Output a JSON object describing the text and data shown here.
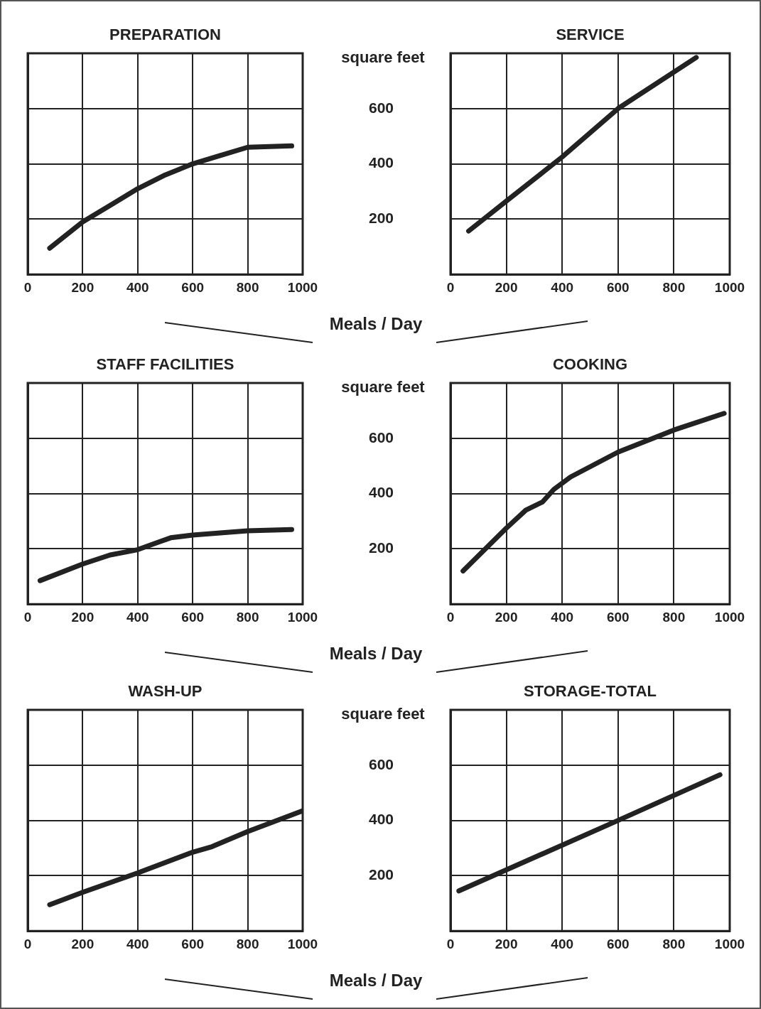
{
  "chart_data": [
    {
      "type": "line",
      "title": "PREPARATION",
      "xlabel": "Meals / Day",
      "xlim": [
        0,
        1000
      ],
      "xticks": [
        0,
        200,
        400,
        600,
        800,
        1000
      ],
      "ylim": [
        0,
        800
      ],
      "yticks": [
        200,
        400,
        600
      ],
      "grid": true,
      "tick_labels": "x",
      "marker": "none",
      "legend": false,
      "series": [
        {
          "color": "#222222",
          "x": [
            80,
            200,
            300,
            400,
            500,
            600,
            700,
            800,
            960
          ],
          "values": [
            95,
            190,
            250,
            310,
            360,
            400,
            430,
            460,
            465
          ]
        }
      ]
    },
    {
      "type": "line",
      "title": "SERVICE",
      "ylabel": "square feet",
      "xlim": [
        0,
        1000
      ],
      "xticks": [
        0,
        200,
        400,
        600,
        800,
        1000
      ],
      "ylim": [
        0,
        800
      ],
      "yticks": [
        200,
        400,
        600
      ],
      "grid": true,
      "marker": "none",
      "legend": false,
      "series": [
        {
          "color": "#222222",
          "x": [
            65,
            200,
            400,
            600,
            880
          ],
          "values": [
            157,
            265,
            425,
            600,
            785
          ]
        }
      ]
    },
    {
      "type": "line",
      "title": "STAFF FACILITIES",
      "xlabel": "Meals / Day",
      "xlim": [
        0,
        1000
      ],
      "xticks": [
        0,
        200,
        400,
        600,
        800,
        1000
      ],
      "ylim": [
        0,
        800
      ],
      "yticks": [
        200,
        400,
        600
      ],
      "grid": true,
      "tick_labels": "x",
      "marker": "none",
      "legend": false,
      "series": [
        {
          "color": "#222222",
          "x": [
            45,
            200,
            300,
            400,
            450,
            520,
            600,
            800,
            960
          ],
          "values": [
            85,
            145,
            178,
            197,
            215,
            240,
            250,
            265,
            270
          ]
        }
      ]
    },
    {
      "type": "line",
      "title": "COOKING",
      "ylabel": "square feet",
      "xlim": [
        0,
        1000
      ],
      "xticks": [
        0,
        200,
        400,
        600,
        800,
        1000
      ],
      "ylim": [
        0,
        800
      ],
      "yticks": [
        200,
        400,
        600
      ],
      "grid": true,
      "marker": "none",
      "legend": false,
      "series": [
        {
          "color": "#222222",
          "x": [
            45,
            200,
            270,
            330,
            370,
            430,
            600,
            800,
            980
          ],
          "values": [
            120,
            275,
            340,
            370,
            415,
            460,
            550,
            630,
            690
          ]
        }
      ]
    },
    {
      "type": "line",
      "title": "WASH-UP",
      "xlabel": "Meals / Day",
      "xlim": [
        0,
        1000
      ],
      "xticks": [
        0,
        200,
        400,
        600,
        800,
        1000
      ],
      "ylim": [
        0,
        800
      ],
      "yticks": [
        200,
        400,
        600
      ],
      "grid": true,
      "tick_labels": "x",
      "marker": "none",
      "legend": false,
      "series": [
        {
          "color": "#222222",
          "x": [
            80,
            200,
            400,
            600,
            670,
            800,
            1000
          ],
          "values": [
            95,
            140,
            210,
            285,
            305,
            360,
            435
          ]
        }
      ]
    },
    {
      "type": "line",
      "title": "STORAGE-TOTAL",
      "ylabel": "square feet",
      "xlim": [
        0,
        1000
      ],
      "xticks": [
        0,
        200,
        400,
        600,
        800,
        1000
      ],
      "ylim": [
        0,
        800
      ],
      "yticks": [
        200,
        400,
        600
      ],
      "grid": true,
      "marker": "none",
      "legend": false,
      "series": [
        {
          "color": "#222222",
          "x": [
            30,
            600,
            965
          ],
          "values": [
            145,
            400,
            565
          ]
        }
      ]
    }
  ]
}
